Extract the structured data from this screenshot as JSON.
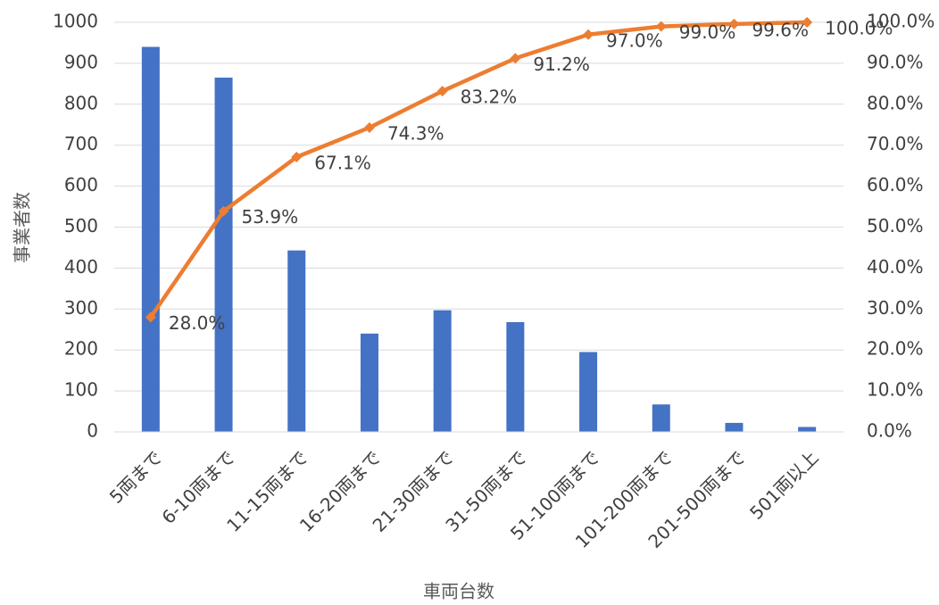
{
  "chart_data": {
    "type": "combo",
    "categories": [
      "5両まで",
      "6-10両まで",
      "11-15両まで",
      "16-20両まで",
      "21-30両まで",
      "31-50両まで",
      "51-100両まで",
      "101-200両まで",
      "201-500両まで",
      "501両以上"
    ],
    "x_label": "車両台数",
    "y_label": "事業者数",
    "series": [
      {
        "type": "bar",
        "color": "#4472c4",
        "values": [
          940,
          865,
          443,
          240,
          297,
          268,
          195,
          67,
          22,
          12
        ]
      },
      {
        "type": "line",
        "axis": "y2",
        "color": "#ed7d31",
        "values": [
          28.0,
          53.9,
          67.1,
          74.3,
          83.2,
          91.2,
          97.0,
          99.0,
          99.6,
          100.0
        ],
        "value_labels": [
          "28.0%",
          "53.9%",
          "67.1%",
          "74.3%",
          "83.2%",
          "91.2%",
          "97.0%",
          "99.0%",
          "99.6%",
          "100.0%"
        ]
      }
    ],
    "ylim": [
      0,
      1000
    ],
    "yticks": [
      0,
      100,
      200,
      300,
      400,
      500,
      600,
      700,
      800,
      900,
      1000
    ],
    "y2lim": [
      0,
      100
    ],
    "y2ticks": [
      {
        "value": 0,
        "label": "0.0%"
      },
      {
        "value": 10,
        "label": "10.0%"
      },
      {
        "value": 20,
        "label": "20.0%"
      },
      {
        "value": 30,
        "label": "30.0%"
      },
      {
        "value": 40,
        "label": "40.0%"
      },
      {
        "value": 50,
        "label": "50.0%"
      },
      {
        "value": 60,
        "label": "60.0%"
      },
      {
        "value": 70,
        "label": "70.0%"
      },
      {
        "value": 80,
        "label": "80.0%"
      },
      {
        "value": 90,
        "label": "90.0%"
      },
      {
        "value": 100,
        "label": "100.0%"
      }
    ],
    "grid": true
  }
}
